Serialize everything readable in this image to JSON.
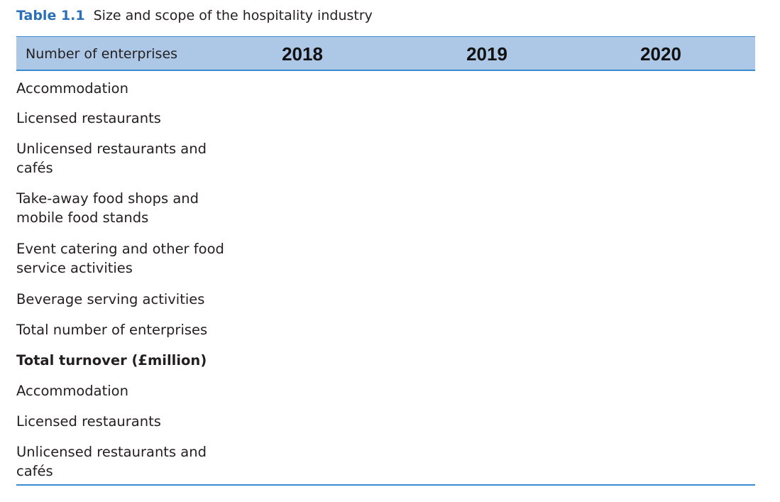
{
  "caption": {
    "number": "Table 1.1",
    "title": "Size and scope of the hospitality industry"
  },
  "table": {
    "header_label": "Number of enterprises",
    "years": [
      "2018",
      "2019",
      "2020"
    ],
    "rows": [
      {
        "label": "Accommodation",
        "bold": false
      },
      {
        "label": "Licensed restaurants",
        "bold": false
      },
      {
        "label": "Unlicensed restaurants and cafés",
        "bold": false
      },
      {
        "label": "Take-away food shops and mobile food stands",
        "bold": false
      },
      {
        "label": "Event catering and other food service activities",
        "bold": false
      },
      {
        "label": "Beverage serving activities",
        "bold": false
      },
      {
        "label": "Total number of enterprises",
        "bold": false
      },
      {
        "label": "Total turnover (£million)",
        "bold": true
      },
      {
        "label": "Accommodation",
        "bold": false
      },
      {
        "label": "Licensed restaurants",
        "bold": false
      },
      {
        "label": "Unlicensed restaurants and cafés",
        "bold": false
      }
    ]
  },
  "colors": {
    "caption_number": "#2a6fb7",
    "header_fill": "#adc8e6",
    "rule": "#3a8ad0"
  }
}
